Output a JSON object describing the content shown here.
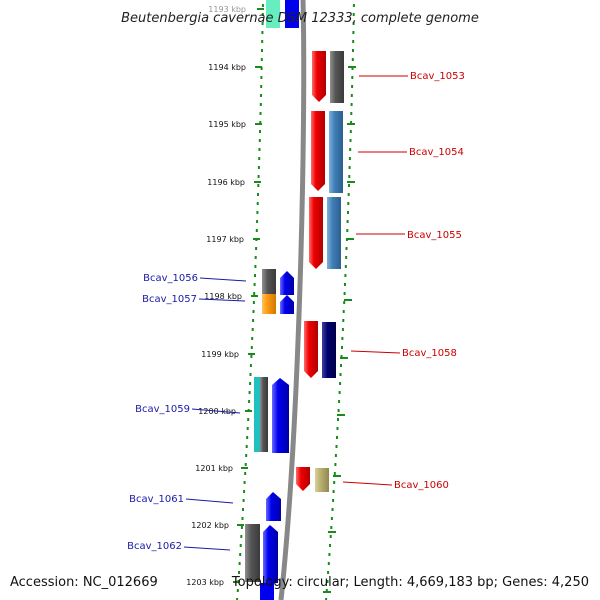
{
  "title": "Beutenbergia cavernae DSM 12333, complete genome",
  "footer": {
    "accession": "Accession: NC_012669",
    "topology": "Topology: circular; Length: 4,669,183 bp; Genes: 4,250"
  },
  "ticks": [
    "1193 kbp",
    "1194 kbp",
    "1195 kbp",
    "1196 kbp",
    "1197 kbp",
    "1198 kbp",
    "1199 kbp",
    "1200 kbp",
    "1201 kbp",
    "1202 kbp",
    "1203 kbp"
  ],
  "genes_right": [
    "Bcav_1053",
    "Bcav_1054",
    "Bcav_1055",
    "Bcav_1058",
    "Bcav_1060"
  ],
  "genes_left": [
    "Bcav_1056",
    "Bcav_1057",
    "Bcav_1059",
    "Bcav_1061",
    "Bcav_1062"
  ],
  "colors": {
    "forward_gene": "#ee0000",
    "reverse_gene": "#0000ee",
    "dark_gene": "#555555",
    "steelblue_gene": "#3f7fb6",
    "navy_gene": "#00006e",
    "orange_gene": "#ff9a10",
    "khaki_gene": "#b8b070",
    "cyan_gene": "#20c0c0",
    "tick_green": "#1a8a1a",
    "backbone": "#888888"
  }
}
